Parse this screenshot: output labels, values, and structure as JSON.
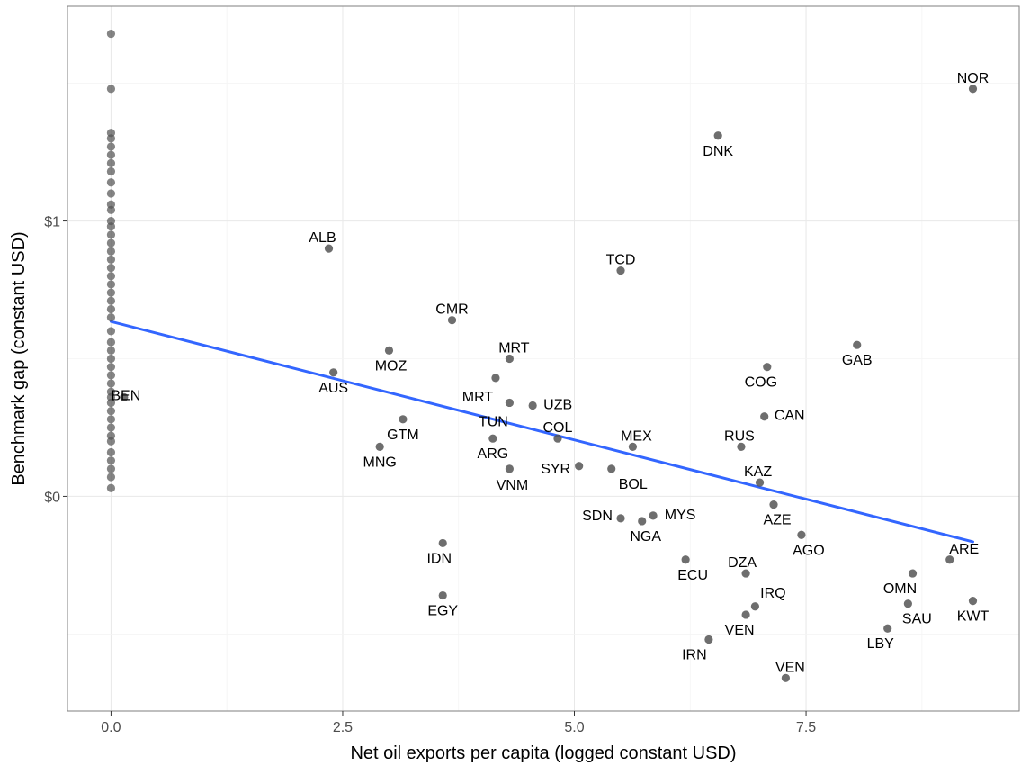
{
  "chart_data": {
    "type": "scatter",
    "xlabel": "Net oil exports per capita (logged constant USD)",
    "ylabel": "Benchmark gap (constant USD)",
    "xlim": [
      -0.47,
      9.8
    ],
    "ylim": [
      -0.78,
      1.78
    ],
    "x_ticks": [
      {
        "value": 0,
        "label": "0.0"
      },
      {
        "value": 2.5,
        "label": "2.5"
      },
      {
        "value": 5,
        "label": "5.0"
      },
      {
        "value": 7.5,
        "label": "7.5"
      }
    ],
    "y_ticks": [
      {
        "value": 0,
        "label": "$0"
      },
      {
        "value": 1,
        "label": "$1"
      }
    ],
    "grid": true,
    "trend_line": {
      "x": [
        0,
        9.3
      ],
      "y": [
        0.635,
        -0.165
      ],
      "color": "#3366ff"
    },
    "point_color": "#555555",
    "zero_x_points": [
      1.68,
      1.48,
      1.32,
      1.3,
      1.27,
      1.24,
      1.21,
      1.18,
      1.14,
      1.1,
      1.06,
      1.04,
      1.0,
      0.98,
      0.95,
      0.92,
      0.89,
      0.86,
      0.83,
      0.8,
      0.77,
      0.74,
      0.71,
      0.68,
      0.65,
      0.6,
      0.56,
      0.53,
      0.5,
      0.47,
      0.44,
      0.41,
      0.38,
      0.36,
      0.34,
      0.31,
      0.28,
      0.25,
      0.22,
      0.2,
      0.16,
      0.13,
      0.1,
      0.07,
      0.03
    ],
    "points": [
      {
        "label": "NOR",
        "x": 9.3,
        "y": 1.48
      },
      {
        "label": "DNK",
        "x": 6.55,
        "y": 1.31
      },
      {
        "label": "ALB",
        "x": 2.35,
        "y": 0.9
      },
      {
        "label": "TCD",
        "x": 5.5,
        "y": 0.82
      },
      {
        "label": "CMR",
        "x": 3.68,
        "y": 0.64
      },
      {
        "label": "MRT",
        "x": 4.3,
        "y": 0.5
      },
      {
        "label": "MRT",
        "x": 4.15,
        "y": 0.43
      },
      {
        "label": "MOZ",
        "x": 3.0,
        "y": 0.53
      },
      {
        "label": "GAB",
        "x": 8.05,
        "y": 0.55
      },
      {
        "label": "COG",
        "x": 7.08,
        "y": 0.47
      },
      {
        "label": "BEN",
        "x": 0.14,
        "y": 0.36
      },
      {
        "label": "AUS",
        "x": 2.4,
        "y": 0.45
      },
      {
        "label": "UZB",
        "x": 4.55,
        "y": 0.33
      },
      {
        "label": "TUN",
        "x": 4.3,
        "y": 0.34
      },
      {
        "label": "CAN",
        "x": 7.05,
        "y": 0.29
      },
      {
        "label": "GTM",
        "x": 3.15,
        "y": 0.28
      },
      {
        "label": "COL",
        "x": 4.82,
        "y": 0.21
      },
      {
        "label": "ARG",
        "x": 4.12,
        "y": 0.21
      },
      {
        "label": "MEX",
        "x": 5.63,
        "y": 0.18
      },
      {
        "label": "RUS",
        "x": 6.8,
        "y": 0.18
      },
      {
        "label": "MNG",
        "x": 2.9,
        "y": 0.18
      },
      {
        "label": "SYR",
        "x": 5.05,
        "y": 0.11
      },
      {
        "label": "VNM",
        "x": 4.3,
        "y": 0.1
      },
      {
        "label": "BOL",
        "x": 5.4,
        "y": 0.1
      },
      {
        "label": "KAZ",
        "x": 7.0,
        "y": 0.05
      },
      {
        "label": "SDN",
        "x": 5.5,
        "y": -0.08
      },
      {
        "label": "MYS",
        "x": 5.85,
        "y": -0.07
      },
      {
        "label": "NGA",
        "x": 5.73,
        "y": -0.09
      },
      {
        "label": "AZE",
        "x": 7.15,
        "y": -0.03
      },
      {
        "label": "AGO",
        "x": 7.45,
        "y": -0.14
      },
      {
        "label": "IDN",
        "x": 3.58,
        "y": -0.17
      },
      {
        "label": "ECU",
        "x": 6.2,
        "y": -0.23
      },
      {
        "label": "DZA",
        "x": 6.85,
        "y": -0.28
      },
      {
        "label": "ARE",
        "x": 9.05,
        "y": -0.23
      },
      {
        "label": "OMN",
        "x": 8.65,
        "y": -0.28
      },
      {
        "label": "EGY",
        "x": 3.58,
        "y": -0.36
      },
      {
        "label": "IRQ",
        "x": 6.95,
        "y": -0.4
      },
      {
        "label": "VEN",
        "x": 6.85,
        "y": -0.43
      },
      {
        "label": "SAU",
        "x": 8.6,
        "y": -0.39
      },
      {
        "label": "KWT",
        "x": 9.3,
        "y": -0.38
      },
      {
        "label": "LBY",
        "x": 8.38,
        "y": -0.48
      },
      {
        "label": "IRN",
        "x": 6.45,
        "y": -0.52
      },
      {
        "label": "VEN",
        "x": 7.28,
        "y": -0.66
      }
    ]
  }
}
